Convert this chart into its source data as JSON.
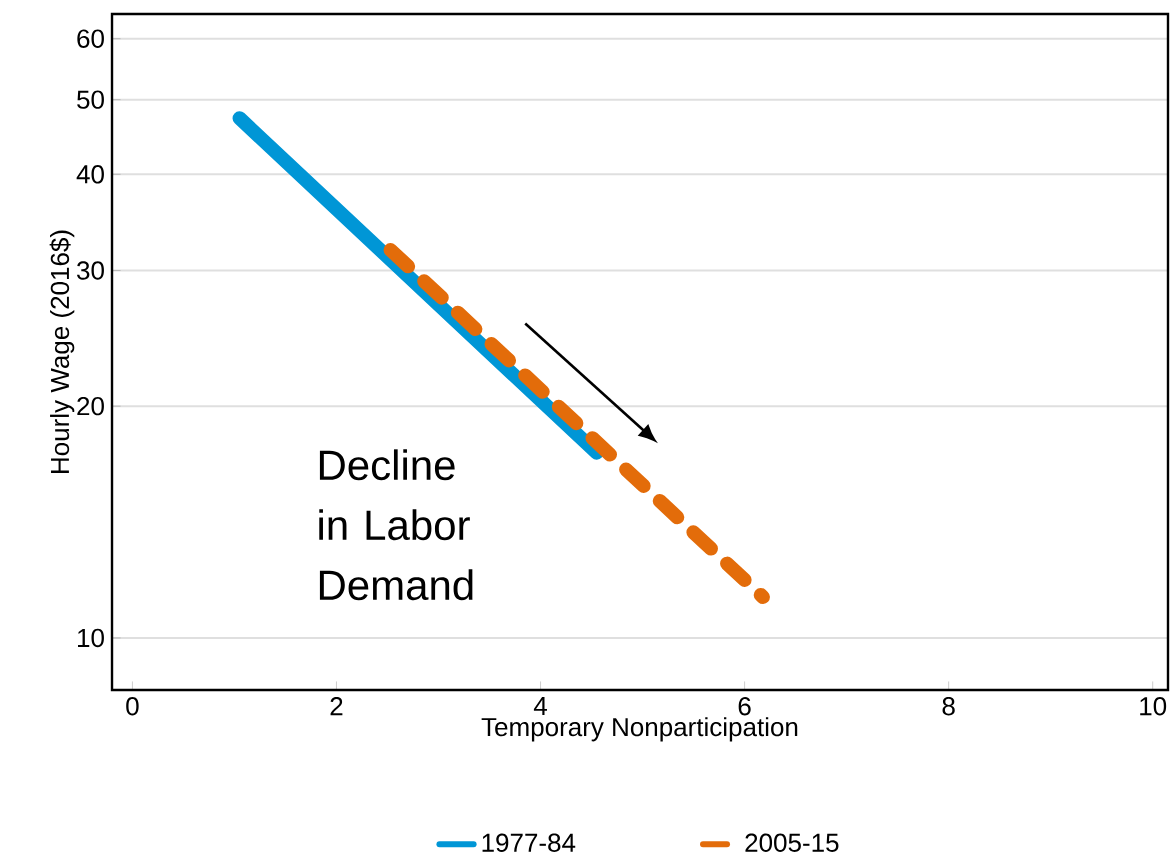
{
  "chart_data": {
    "type": "line",
    "xlabel": "Temporary Nonparticipation",
    "ylabel": "Hourly Wage (2016$)",
    "annotations": [
      "Decline in Labor Demand"
    ],
    "log": "y",
    "grid": "y",
    "legend": "bottom",
    "xlim": [
      -0.2,
      10.15
    ],
    "xticks": [
      0,
      2,
      4,
      6,
      8,
      10
    ],
    "ylim": [
      8.56,
      64.6
    ],
    "yticks": [
      10,
      20,
      30,
      40,
      50,
      60
    ],
    "series": [
      {
        "name": "1977-84",
        "color": "#0096d6",
        "x": [
          1.05,
          4.55
        ],
        "values": [
          47.3,
          17.4
        ],
        "line_style": "solid"
      },
      {
        "name": "2005-15",
        "color": "#e36c0a",
        "x": [
          2.53,
          6.18
        ],
        "values": [
          31.9,
          11.3
        ],
        "line_style": "dashed"
      }
    ]
  }
}
